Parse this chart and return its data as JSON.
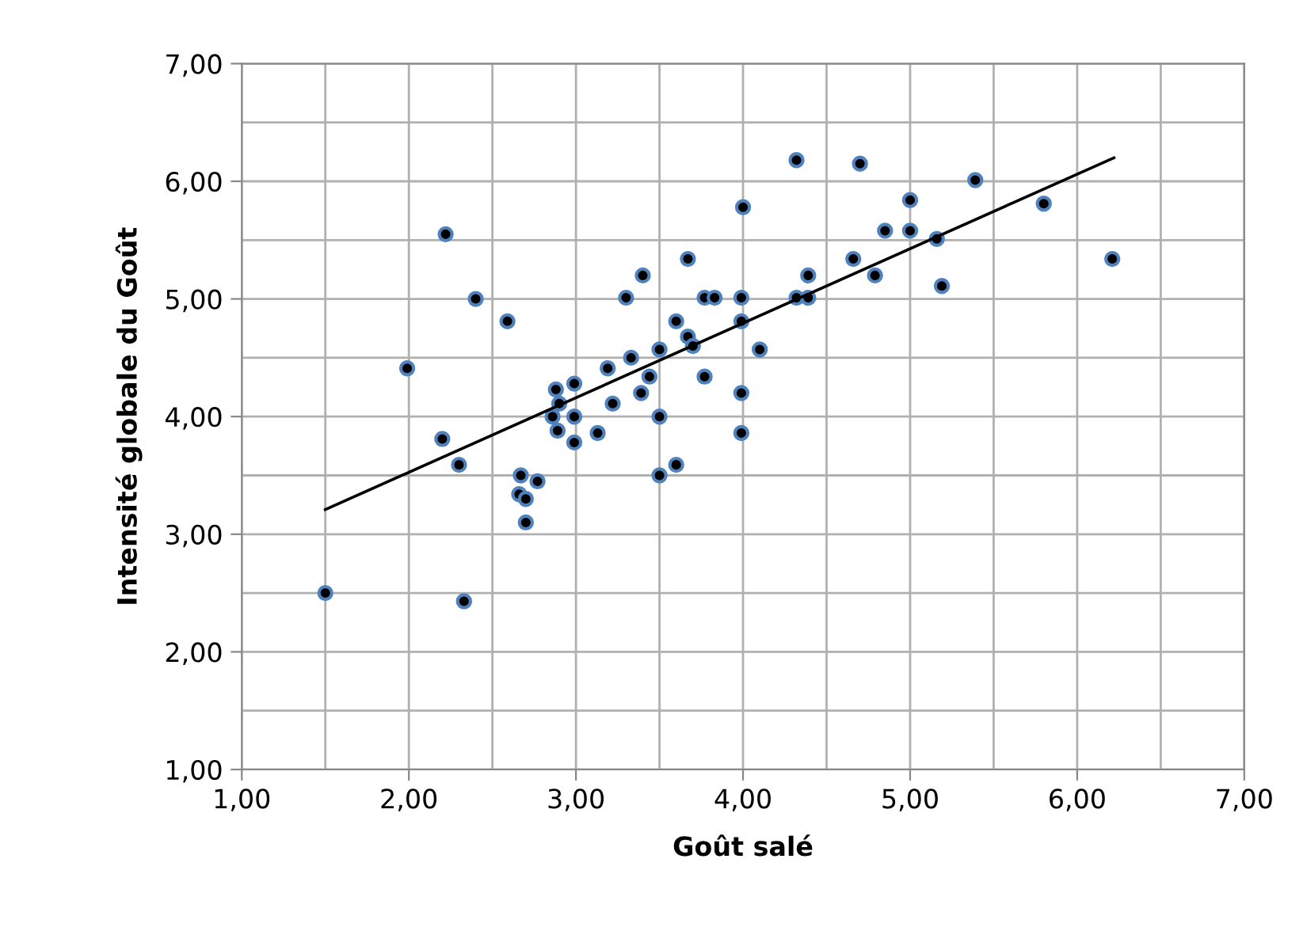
{
  "chart_data": {
    "type": "scatter",
    "xlabel": "Goût salé",
    "ylabel": "Intensité globale du Goût",
    "xlim": [
      1,
      7
    ],
    "ylim": [
      1,
      7
    ],
    "xticks": [
      {
        "value": 1,
        "label": "1,00"
      },
      {
        "value": 1.5,
        "label": null
      },
      {
        "value": 2,
        "label": "2,00"
      },
      {
        "value": 2.5,
        "label": null
      },
      {
        "value": 3,
        "label": "3,00"
      },
      {
        "value": 3.5,
        "label": null
      },
      {
        "value": 4,
        "label": "4,00"
      },
      {
        "value": 4.5,
        "label": null
      },
      {
        "value": 5,
        "label": "5,00"
      },
      {
        "value": 5.5,
        "label": null
      },
      {
        "value": 6,
        "label": "6,00"
      },
      {
        "value": 6.5,
        "label": null
      },
      {
        "value": 7,
        "label": "7,00"
      }
    ],
    "yticks": [
      {
        "value": 1,
        "label": "1,00"
      },
      {
        "value": 1.5,
        "label": null
      },
      {
        "value": 2,
        "label": "2,00"
      },
      {
        "value": 2.5,
        "label": null
      },
      {
        "value": 3,
        "label": "3,00"
      },
      {
        "value": 3.5,
        "label": null
      },
      {
        "value": 4,
        "label": "4,00"
      },
      {
        "value": 4.5,
        "label": null
      },
      {
        "value": 5,
        "label": "5,00"
      },
      {
        "value": 5.5,
        "label": null
      },
      {
        "value": 6,
        "label": "6,00"
      },
      {
        "value": 6.5,
        "label": null
      },
      {
        "value": 7,
        "label": "7,00"
      }
    ],
    "grid": true,
    "marker": "circle",
    "legend": false,
    "series": [
      {
        "color": "#000000",
        "x": [
          1.5,
          2.33,
          1.99,
          2.2,
          2.22,
          2.3,
          2.4,
          2.59,
          2.66,
          2.67,
          2.7,
          2.7,
          2.77,
          2.86,
          2.88,
          2.89,
          2.9,
          2.99,
          2.99,
          2.99,
          3.13,
          3.19,
          3.22,
          3.3,
          3.33,
          3.39,
          3.4,
          3.44,
          3.5,
          3.5,
          3.5,
          3.6,
          3.6,
          3.67,
          3.67,
          3.7,
          3.77,
          3.77,
          3.83,
          3.99,
          3.99,
          3.99,
          3.99,
          4.0,
          4.1,
          4.32,
          4.32,
          4.39,
          4.39,
          4.66,
          4.7,
          4.79,
          4.85,
          5.0,
          5.0,
          5.16,
          5.19,
          5.39,
          5.8,
          6.21
        ],
        "values": [
          2.5,
          2.43,
          4.41,
          3.81,
          5.55,
          3.59,
          5.0,
          4.81,
          3.34,
          3.5,
          3.3,
          3.1,
          3.45,
          4.0,
          4.23,
          3.88,
          4.11,
          4.28,
          4.0,
          3.78,
          3.86,
          4.41,
          4.11,
          5.01,
          4.5,
          4.2,
          5.2,
          4.34,
          4.57,
          4.0,
          3.5,
          4.81,
          3.59,
          5.34,
          4.68,
          4.6,
          5.01,
          4.34,
          5.01,
          4.81,
          4.2,
          3.86,
          5.01,
          5.78,
          4.57,
          6.18,
          5.01,
          5.01,
          5.2,
          5.34,
          6.15,
          5.2,
          5.58,
          5.84,
          5.58,
          5.51,
          5.11,
          6.01,
          5.81,
          5.34
        ]
      },
      {
        "type": "line",
        "color": "#000000",
        "marker": "none",
        "x": [
          1.5,
          6.22
        ],
        "values": [
          3.21,
          6.2
        ]
      }
    ]
  }
}
